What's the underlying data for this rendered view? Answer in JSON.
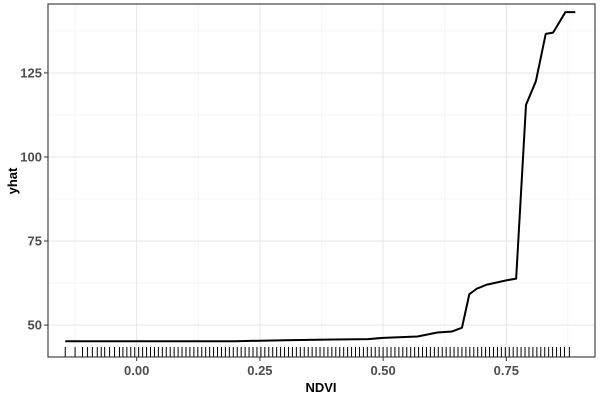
{
  "chart_data": {
    "type": "line",
    "title": "",
    "xlabel": "NDVI",
    "ylabel": "yhat",
    "xlim": [
      -0.18,
      0.93
    ],
    "ylim": [
      40.5,
      145.5
    ],
    "x_ticks": [
      0.0,
      0.25,
      0.5,
      0.75
    ],
    "x_tick_labels": [
      "0.00",
      "0.25",
      "0.50",
      "0.75"
    ],
    "y_ticks": [
      50,
      75,
      100,
      125
    ],
    "y_tick_labels": [
      "50",
      "75",
      "100",
      "125"
    ],
    "grid": true,
    "legend": "none",
    "series": [
      {
        "x": [
          -0.145,
          0.0,
          0.1,
          0.2,
          0.3,
          0.4,
          0.47,
          0.5,
          0.57,
          0.61,
          0.64,
          0.66,
          0.675,
          0.69,
          0.71,
          0.75,
          0.77,
          0.79,
          0.81,
          0.83,
          0.845,
          0.87,
          0.89
        ],
        "values": [
          45.2,
          45.2,
          45.2,
          45.2,
          45.5,
          45.7,
          45.8,
          46.2,
          46.6,
          47.8,
          48.1,
          49.2,
          59.2,
          60.8,
          62.0,
          63.3,
          63.8,
          115.5,
          122.5,
          136.6,
          137.0,
          143.1,
          143.1
        ]
      }
    ],
    "rug_x": [
      -0.145,
      -0.125,
      -0.11,
      -0.1,
      -0.09,
      -0.08,
      -0.072,
      -0.065,
      -0.055,
      -0.045,
      -0.035,
      -0.028,
      -0.02,
      -0.012,
      -0.004,
      0.004,
      0.012,
      0.02,
      0.028,
      0.036,
      0.044,
      0.052,
      0.06,
      0.068,
      0.076,
      0.084,
      0.092,
      0.1,
      0.108,
      0.116,
      0.124,
      0.132,
      0.14,
      0.148,
      0.156,
      0.164,
      0.172,
      0.18,
      0.188,
      0.196,
      0.204,
      0.212,
      0.22,
      0.228,
      0.236,
      0.244,
      0.252,
      0.26,
      0.268,
      0.276,
      0.284,
      0.292,
      0.3,
      0.308,
      0.316,
      0.324,
      0.332,
      0.34,
      0.348,
      0.356,
      0.364,
      0.372,
      0.38,
      0.388,
      0.396,
      0.404,
      0.412,
      0.42,
      0.428,
      0.436,
      0.444,
      0.452,
      0.46,
      0.468,
      0.476,
      0.484,
      0.492,
      0.5,
      0.508,
      0.516,
      0.524,
      0.532,
      0.54,
      0.548,
      0.556,
      0.564,
      0.572,
      0.58,
      0.588,
      0.596,
      0.604,
      0.612,
      0.62,
      0.628,
      0.636,
      0.644,
      0.652,
      0.66,
      0.668,
      0.676,
      0.684,
      0.692,
      0.7,
      0.708,
      0.716,
      0.724,
      0.732,
      0.74,
      0.748,
      0.756,
      0.764,
      0.772,
      0.78,
      0.788,
      0.796,
      0.804,
      0.812,
      0.82,
      0.828,
      0.836,
      0.844,
      0.852,
      0.86,
      0.868,
      0.878
    ]
  }
}
